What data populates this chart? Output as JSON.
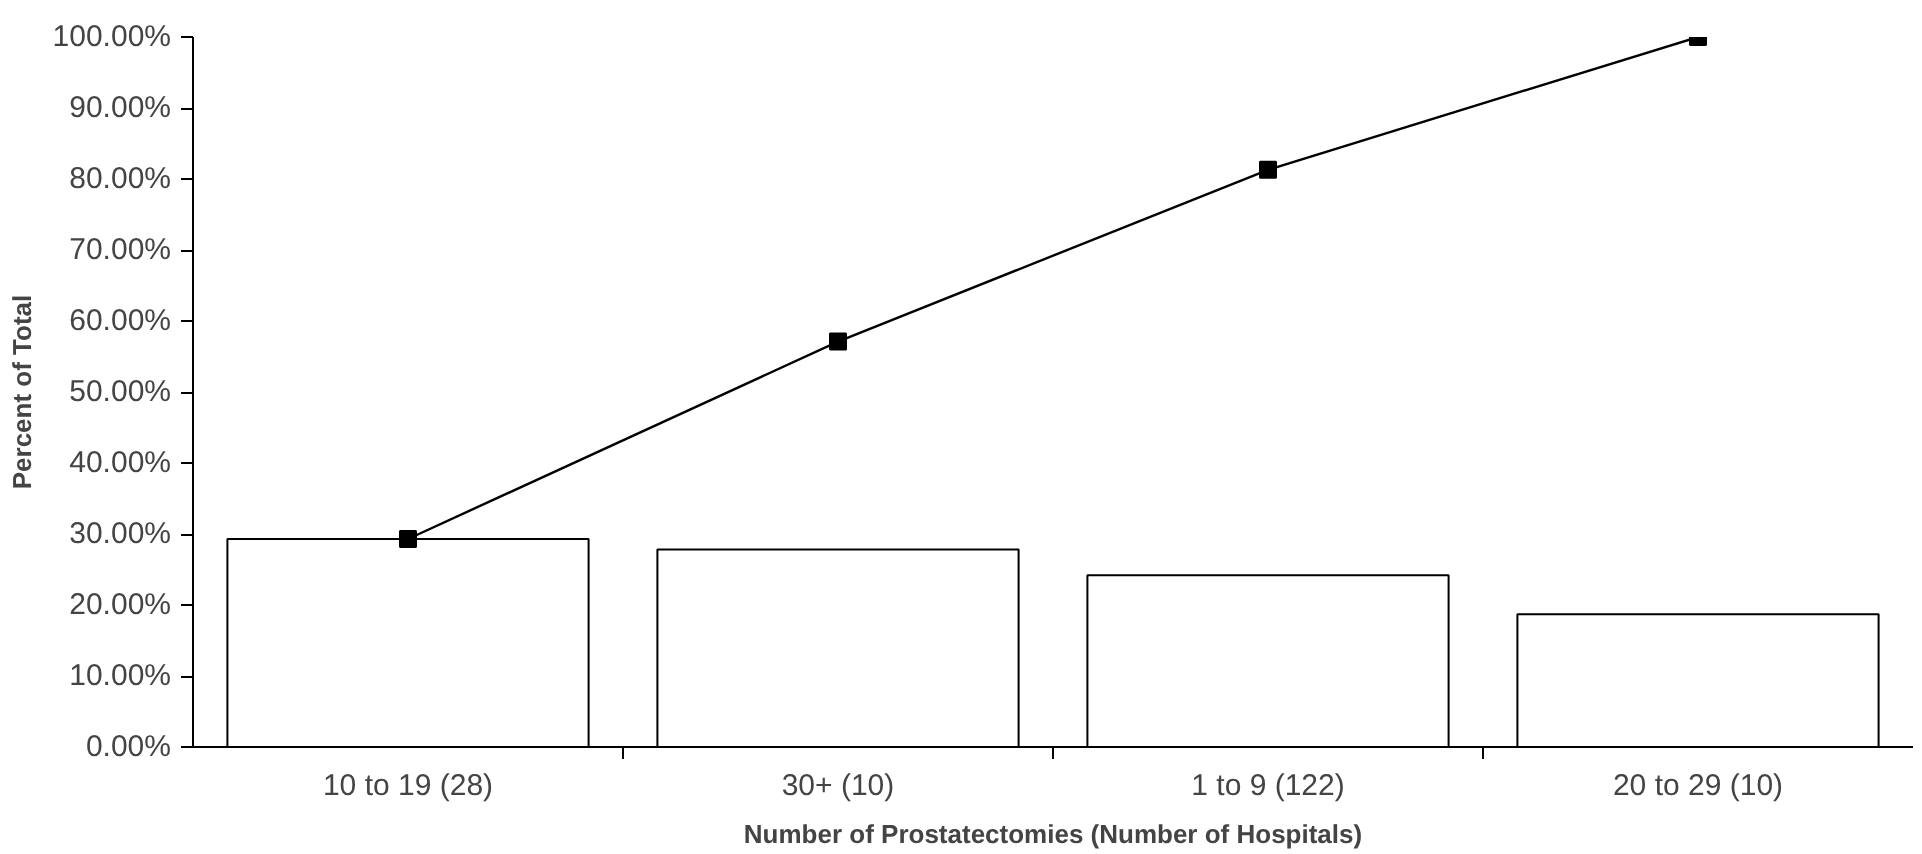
{
  "chart_data": {
    "type": "bar",
    "xlabel": "Number of Prostatectomies (Number of Hospitals)",
    "ylabel": "Percent of Total",
    "categories": [
      "10 to 19 (28)",
      "30+ (10)",
      "1 to 9 (122)",
      "20 to 29 (10)"
    ],
    "series": [
      {
        "color": "#ffffff",
        "values": [
          29.3,
          27.8,
          24.2,
          18.7
        ]
      },
      {
        "type": "line",
        "color": "#000000",
        "values": [
          29.3,
          57.1,
          81.3,
          100.0
        ],
        "marker": "square"
      }
    ],
    "ylim": [
      0,
      100
    ],
    "yticks": [
      {
        "value": 0,
        "label": "0.00%"
      },
      {
        "value": 10,
        "label": "10.00%"
      },
      {
        "value": 20,
        "label": "20.00%"
      },
      {
        "value": 30,
        "label": "30.00%"
      },
      {
        "value": 40,
        "label": "40.00%"
      },
      {
        "value": 50,
        "label": "50.00%"
      },
      {
        "value": 60,
        "label": "60.00%"
      },
      {
        "value": 70,
        "label": "70.00%"
      },
      {
        "value": 80,
        "label": "80.00%"
      },
      {
        "value": 90,
        "label": "90.00%"
      },
      {
        "value": 100,
        "label": "100.00%"
      }
    ],
    "grid": false
  }
}
